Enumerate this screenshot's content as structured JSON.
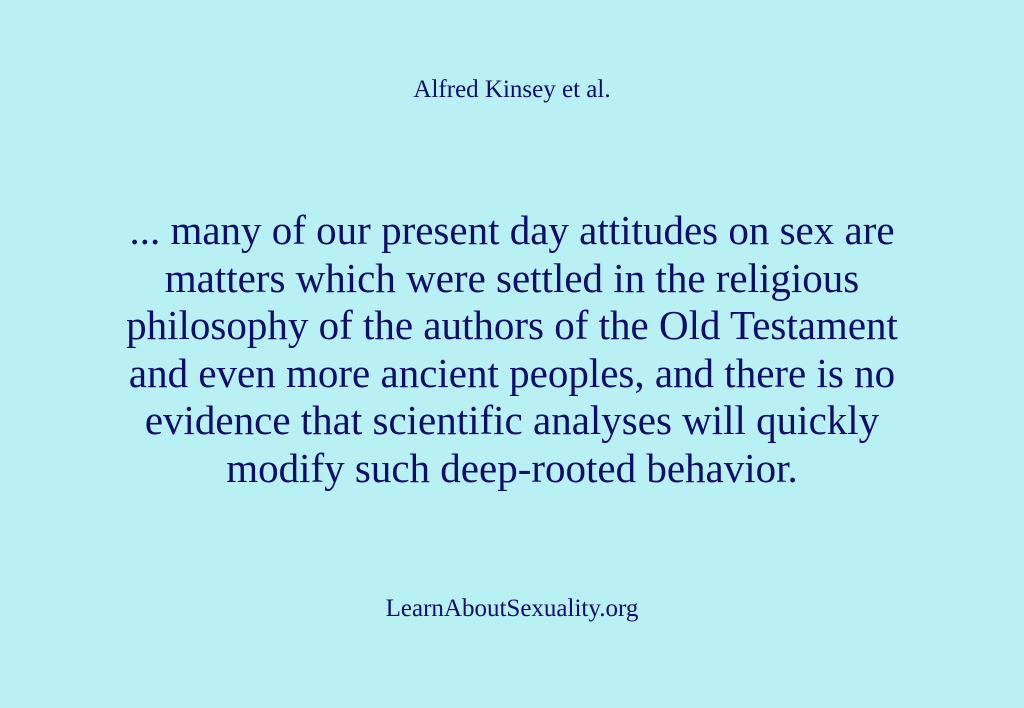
{
  "author": "Alfred Kinsey et al.",
  "quote_lines": [
    "... many of our present day attitudes on sex are",
    "matters which were settled in the religious",
    "philosophy of the authors of the Old Testament",
    "and even more ancient peoples, and there is no",
    "evidence that scientific analyses will quickly",
    "modify such deep-rooted behavior."
  ],
  "site": "LearnAboutSexuality.org",
  "colors": {
    "background": "#b8f0f3",
    "text": "#0d0d6b"
  }
}
